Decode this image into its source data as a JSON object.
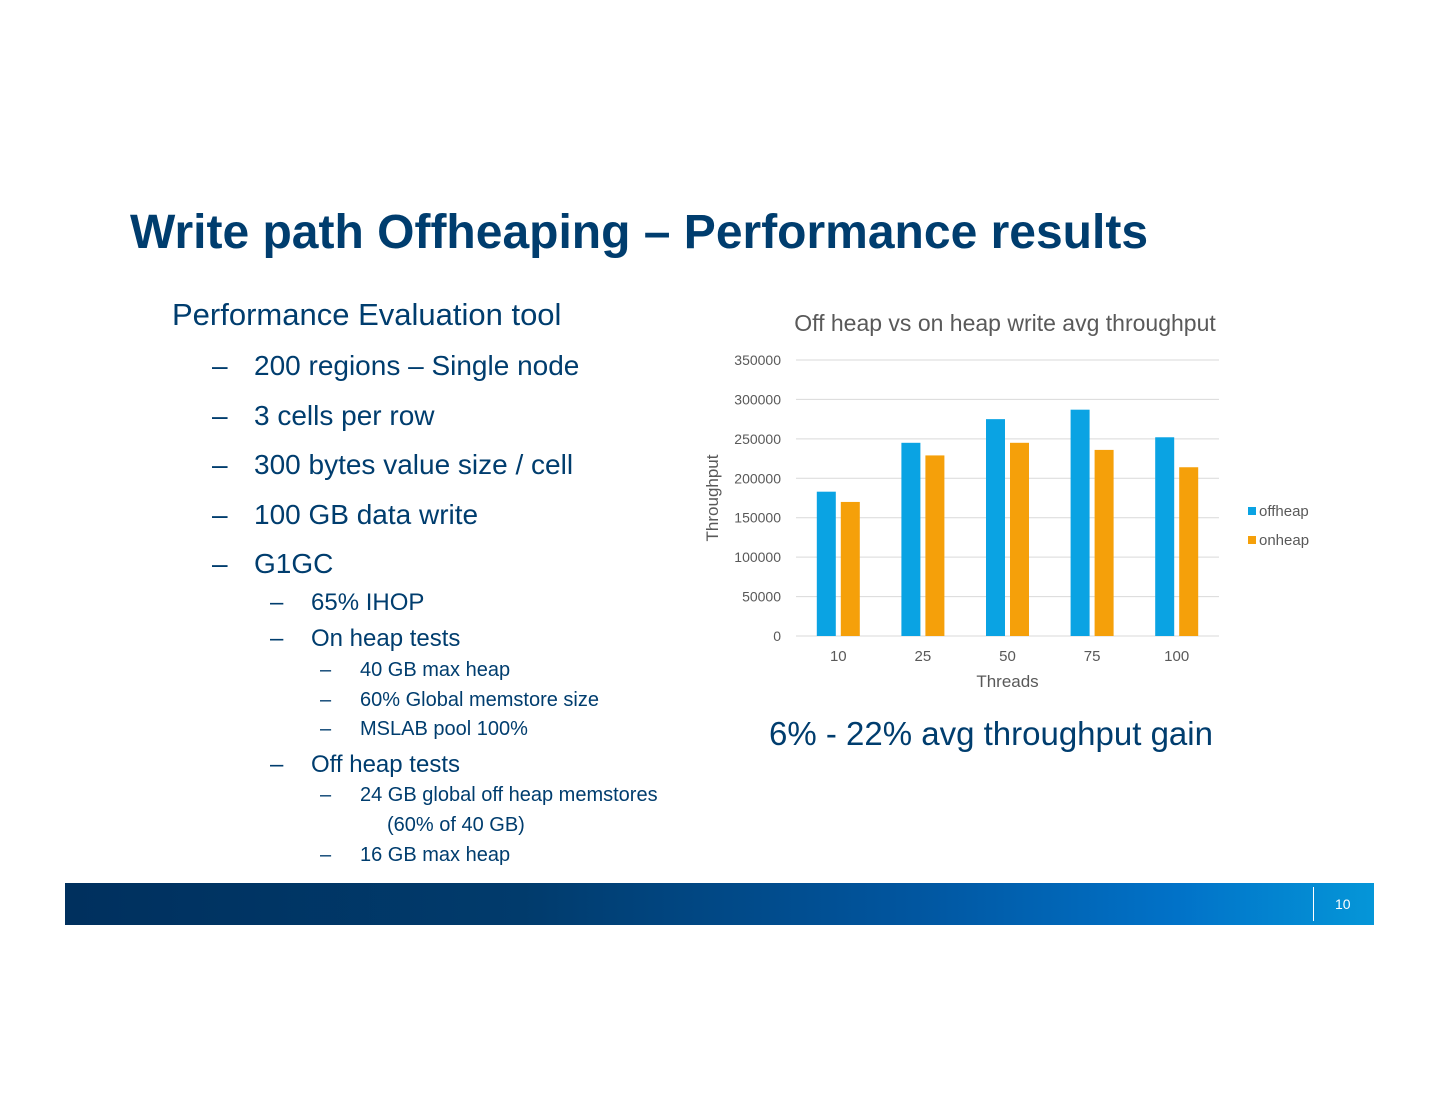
{
  "slide": {
    "title": "Write path Offheaping – Performance results",
    "page_number": "10",
    "gain_text": "6% - 22% avg throughput gain"
  },
  "bullets": {
    "dash": "–",
    "items": [
      {
        "level": 0,
        "text": "Performance Evaluation tool"
      },
      {
        "level": 1,
        "text": "200 regions – Single node"
      },
      {
        "level": 1,
        "text": "3 cells per row"
      },
      {
        "level": 1,
        "text": "300 bytes value size / cell"
      },
      {
        "level": 1,
        "text": "100 GB data write"
      },
      {
        "level": 1,
        "text": "G1GC"
      },
      {
        "level": 2,
        "text": "65% IHOP"
      },
      {
        "level": 2,
        "text": "On heap tests"
      },
      {
        "level": 3,
        "text": "40 GB max heap"
      },
      {
        "level": 3,
        "text": "60% Global memstore size"
      },
      {
        "level": 3,
        "text": "MSLAB pool 100%"
      },
      {
        "level": 2,
        "text": "Off heap tests"
      },
      {
        "level": 3,
        "text": "24 GB global off heap memstores"
      },
      {
        "level": 4,
        "text": "(60% of 40 GB)"
      },
      {
        "level": 3,
        "text": "16 GB max heap"
      }
    ]
  },
  "chart_data": {
    "type": "bar",
    "title": "Off heap vs on heap write avg throughput",
    "xlabel": "Threads",
    "ylabel": "Throughput",
    "categories": [
      "10",
      "25",
      "50",
      "75",
      "100"
    ],
    "series": [
      {
        "name": "offheap",
        "color": "#0aa3e3",
        "values": [
          183000,
          245000,
          275000,
          287000,
          252000
        ]
      },
      {
        "name": "onheap",
        "color": "#f5a00a",
        "values": [
          170000,
          229000,
          245000,
          236000,
          214000
        ]
      }
    ],
    "ylim": [
      0,
      350000
    ],
    "yticks": [
      0,
      50000,
      100000,
      150000,
      200000,
      250000,
      300000,
      350000
    ],
    "grid": true,
    "legend": "right"
  }
}
